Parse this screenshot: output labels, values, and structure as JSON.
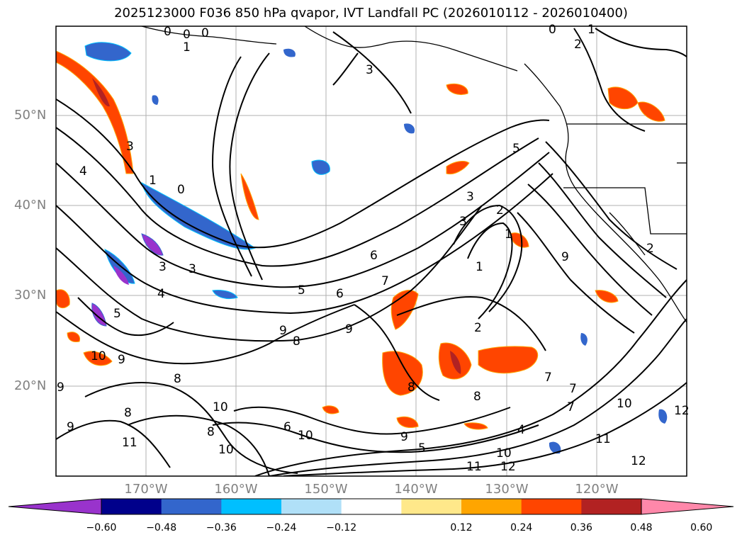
{
  "title": "2025123000 F036 850 hPa qvapor, IVT Landfall PC (2026010112 - 2026010400)",
  "lat_labels": [
    "50°N",
    "40°N",
    "30°N",
    "20°N"
  ],
  "lon_labels": [
    "170°W",
    "160°W",
    "150°W",
    "140°W",
    "130°W",
    "120°W"
  ],
  "colorbar": {
    "colors": [
      "#9933cc",
      "#00008b",
      "#3366cc",
      "#00bfff",
      "#b0e0f8",
      "#ffffff",
      "#ffe88a",
      "#ffa500",
      "#ff4500",
      "#b22222",
      "#ff88aa"
    ],
    "ticks": [
      "−0.60",
      "−0.48",
      "−0.36",
      "−0.24",
      "−0.12",
      "0.12",
      "0.24",
      "0.36",
      "0.48",
      "0.60"
    ]
  },
  "contour_labels": [
    "0",
    "0",
    "0",
    "0",
    "1",
    "2",
    "1",
    "3",
    "3",
    "4",
    "1",
    "0",
    "5",
    "3",
    "3",
    "2",
    "1",
    "6",
    "7",
    "5",
    "4",
    "1",
    "3",
    "2",
    "5",
    "6",
    "8",
    "9",
    "9",
    "8",
    "7",
    "9",
    "10",
    "9",
    "8",
    "8",
    "7",
    "10",
    "11",
    "10",
    "12",
    "11",
    "12",
    "10",
    "9",
    "12",
    "9",
    "11",
    "10",
    "10",
    "8",
    "8",
    "6",
    "5",
    "4",
    "2",
    "9",
    "3",
    "7"
  ]
}
